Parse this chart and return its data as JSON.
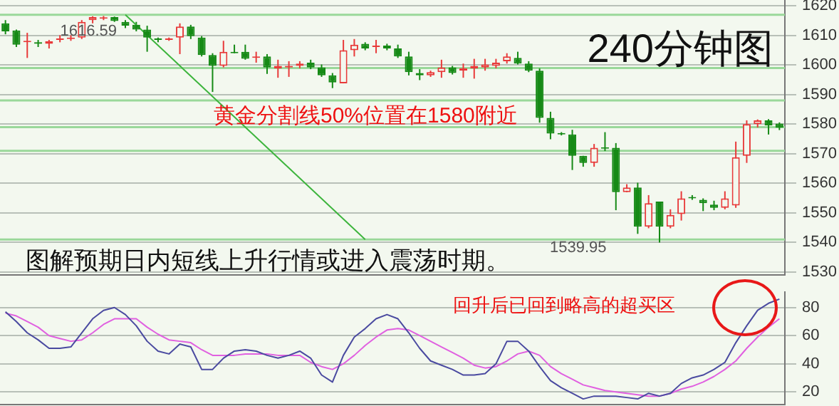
{
  "chart_data": [
    {
      "type": "candlestick",
      "title": "240分钟图",
      "categories": [
        null,
        null,
        null,
        null,
        null,
        null,
        null,
        null,
        null,
        null,
        null,
        null,
        null,
        null,
        null,
        null,
        null,
        null,
        null,
        null,
        null,
        null,
        null,
        null,
        null,
        null,
        null,
        null,
        null,
        null,
        null,
        null,
        null,
        null,
        null,
        null,
        null,
        null,
        null,
        null,
        null,
        null,
        null,
        null,
        null,
        null,
        null,
        null,
        null,
        null,
        null,
        null,
        null,
        null,
        null,
        null,
        null,
        null,
        null,
        null,
        null,
        null,
        null,
        null,
        null,
        null,
        null,
        null,
        null,
        null,
        null,
        null
      ],
      "ohlc": [
        [
          1614.1,
          1615.2,
          1610.4,
          1611.4
        ],
        [
          1611.7,
          1612.0,
          1606.1,
          1606.9
        ],
        [
          1607.7,
          1610.9,
          1602.4,
          1608.0
        ],
        [
          1607.7,
          1608.5,
          1606.1,
          1607.2
        ],
        [
          1607.2,
          1608.5,
          1605.6,
          1608.0
        ],
        [
          1608.5,
          1610.1,
          1607.7,
          1608.8
        ],
        [
          1608.8,
          1610.1,
          1608.2,
          1609.1
        ],
        [
          1609.3,
          1615.2,
          1608.8,
          1614.6
        ],
        [
          1615.2,
          1616.5,
          1614.1,
          1616.2
        ],
        [
          1615.7,
          1616.59,
          1615.2,
          1616.0
        ],
        [
          1616.2,
          1616.4,
          1614.6,
          1614.9
        ],
        [
          1614.6,
          1615.2,
          1612.5,
          1613.3
        ],
        [
          1613.6,
          1614.6,
          1611.4,
          1612.0
        ],
        [
          1612.0,
          1613.3,
          1604.5,
          1609.3
        ],
        [
          1608.8,
          1609.3,
          1607.7,
          1608.5
        ],
        [
          1608.5,
          1609.3,
          1608.2,
          1608.8
        ],
        [
          1609.3,
          1614.1,
          1603.7,
          1613.0
        ],
        [
          1613.0,
          1613.6,
          1608.8,
          1609.8
        ],
        [
          1609.3,
          1609.8,
          1602.9,
          1603.4
        ],
        [
          1603.4,
          1604.0,
          1590.9,
          1599.7
        ],
        [
          1599.7,
          1608.2,
          1599.2,
          1604.5
        ],
        [
          1604.5,
          1606.9,
          1604.0,
          1604.0
        ],
        [
          1604.5,
          1606.9,
          1601.8,
          1602.1
        ],
        [
          1602.4,
          1604.5,
          1600.8,
          1602.7
        ],
        [
          1602.9,
          1603.7,
          1597.0,
          1599.2
        ],
        [
          1598.9,
          1601.8,
          1595.7,
          1599.7
        ],
        [
          1599.2,
          1601.3,
          1596.0,
          1599.7
        ],
        [
          1599.7,
          1601.3,
          1598.9,
          1600.5
        ],
        [
          1600.8,
          1601.8,
          1598.6,
          1599.2
        ],
        [
          1599.2,
          1600.2,
          1596.0,
          1596.5
        ],
        [
          1596.5,
          1597.3,
          1592.2,
          1594.1
        ],
        [
          1593.8,
          1608.5,
          1593.8,
          1605.0
        ],
        [
          1605.0,
          1608.8,
          1602.9,
          1606.9
        ],
        [
          1607.2,
          1607.7,
          1605.0,
          1605.6
        ],
        [
          1606.1,
          1608.5,
          1604.0,
          1606.4
        ],
        [
          1606.6,
          1607.2,
          1605.0,
          1605.6
        ],
        [
          1605.6,
          1606.9,
          1602.4,
          1602.9
        ],
        [
          1602.9,
          1604.5,
          1596.5,
          1597.6
        ],
        [
          1597.3,
          1598.6,
          1594.9,
          1596.5
        ],
        [
          1596.5,
          1598.1,
          1596.0,
          1597.6
        ],
        [
          1597.6,
          1601.8,
          1595.7,
          1599.2
        ],
        [
          1599.2,
          1599.7,
          1596.8,
          1597.3
        ],
        [
          1598.1,
          1600.5,
          1595.7,
          1598.9
        ],
        [
          1598.9,
          1602.1,
          1595.4,
          1599.7
        ],
        [
          1599.2,
          1602.1,
          1598.1,
          1600.2
        ],
        [
          1599.7,
          1602.1,
          1598.9,
          1600.8
        ],
        [
          1601.3,
          1604.0,
          1600.5,
          1602.9
        ],
        [
          1602.4,
          1604.5,
          1600.2,
          1600.5
        ],
        [
          1600.5,
          1601.3,
          1597.6,
          1598.1
        ],
        [
          1598.1,
          1598.9,
          1580.5,
          1582.1
        ],
        [
          1582.1,
          1584.2,
          1574.9,
          1576.8
        ],
        [
          1576.8,
          1577.3,
          1576.2,
          1576.5
        ],
        [
          1576.5,
          1578.1,
          1564.5,
          1569.3
        ],
        [
          1569.3,
          1569.3,
          1565.6,
          1566.9
        ],
        [
          1566.9,
          1573.3,
          1565.6,
          1572.0
        ],
        [
          1572.0,
          1577.3,
          1570.9,
          1571.7
        ],
        [
          1572.0,
          1573.6,
          1550.9,
          1557.0
        ],
        [
          1557.0,
          1559.7,
          1557.0,
          1558.6
        ],
        [
          1558.6,
          1560.2,
          1542.9,
          1545.3
        ],
        [
          1545.3,
          1556.0,
          1544.8,
          1553.3
        ],
        [
          1553.8,
          1553.8,
          1539.95,
          1545.3
        ],
        [
          1545.3,
          1551.2,
          1544.8,
          1549.3
        ],
        [
          1549.6,
          1557.3,
          1547.4,
          1554.9
        ],
        [
          1555.4,
          1556.0,
          1554.4,
          1554.9
        ],
        [
          1554.4,
          1554.9,
          1550.6,
          1553.3
        ],
        [
          1552.8,
          1554.1,
          1550.9,
          1551.7
        ],
        [
          1551.7,
          1557.3,
          1551.2,
          1554.9
        ],
        [
          1552.5,
          1574.1,
          1551.7,
          1568.8
        ],
        [
          1569.3,
          1581.3,
          1566.9,
          1580.0
        ],
        [
          1580.0,
          1581.6,
          1578.9,
          1581.3
        ],
        [
          1581.3,
          1581.7,
          1576.5,
          1579.6
        ],
        [
          1580.2,
          1580.6,
          1578.0,
          1578.8
        ]
      ],
      "series": [
        {
          "type": "line",
          "color": "#3cb43c",
          "values": [
            null,
            null,
            null,
            null,
            null,
            null,
            null,
            null,
            null,
            null,
            null,
            1617,
            null,
            null,
            null,
            null,
            null,
            null,
            null,
            null,
            null,
            null,
            null,
            null,
            null,
            null,
            null,
            null,
            null,
            null,
            null,
            null,
            null,
            1541,
            null,
            null,
            null,
            null,
            null,
            null,
            null,
            null,
            null,
            null,
            null,
            null,
            null,
            null,
            null,
            null,
            null,
            null,
            null,
            null,
            null,
            null,
            null,
            null,
            null,
            null,
            null,
            null,
            null,
            null,
            null,
            null,
            null,
            null,
            null,
            null,
            null,
            null
          ]
        }
      ],
      "ylim": [
        1529,
        1622
      ],
      "yticks": [
        1530,
        1540,
        1550,
        1560,
        1570,
        1580,
        1590,
        1600,
        1610,
        1620
      ],
      "grid": "y",
      "tick_labels": "y",
      "ref_lines": [
        {
          "axis": "y",
          "value": 1617,
          "color": "#9ad89a"
        },
        {
          "axis": "y",
          "value": 1599,
          "color": "#9ad89a"
        },
        {
          "axis": "y",
          "value": 1588,
          "color": "#9ad89a"
        },
        {
          "axis": "y",
          "value": 1579,
          "color": "#9ad89a"
        },
        {
          "axis": "y",
          "value": 1571,
          "color": "#9ad89a"
        },
        {
          "axis": "y",
          "value": 1541,
          "color": "#9ad89a"
        }
      ],
      "annotations": [
        "黄金分割线50%位置在1580附近",
        "图解预期日内短线上升行情或进入震荡时期。",
        "1616.59",
        "1539.95"
      ]
    },
    {
      "type": "line",
      "categories": [
        null,
        null,
        null,
        null,
        null,
        null,
        null,
        null,
        null,
        null,
        null,
        null,
        null,
        null,
        null,
        null,
        null,
        null,
        null,
        null,
        null,
        null,
        null,
        null,
        null,
        null,
        null,
        null,
        null,
        null,
        null,
        null,
        null,
        null,
        null,
        null,
        null,
        null,
        null,
        null,
        null,
        null,
        null,
        null,
        null,
        null,
        null,
        null,
        null,
        null,
        null,
        null,
        null,
        null,
        null,
        null,
        null,
        null,
        null,
        null,
        null,
        null,
        null,
        null,
        null,
        null,
        null,
        null,
        null,
        null,
        null,
        null
      ],
      "series": [
        {
          "color": "#4a4aa0",
          "values": [
            77,
            70,
            62,
            57,
            51,
            51,
            52,
            62,
            72,
            78,
            80,
            75,
            67,
            56,
            49,
            47,
            54,
            52,
            36,
            36,
            44,
            49,
            50,
            49,
            46,
            44,
            46,
            49,
            44,
            32,
            27,
            46,
            59,
            65,
            72,
            75,
            72,
            62,
            51,
            42,
            39,
            36,
            32,
            32,
            33,
            40,
            56,
            56,
            49,
            38,
            28,
            23,
            19,
            15,
            17,
            17,
            17,
            16,
            15,
            19,
            17,
            19,
            26,
            30,
            32,
            36,
            41,
            55,
            67,
            78,
            83,
            86
          ]
        },
        {
          "color": "#e060e0",
          "values": [
            76,
            74,
            70,
            66,
            60,
            58,
            56,
            57,
            62,
            68,
            72,
            72,
            72,
            66,
            61,
            57,
            56,
            55,
            50,
            46,
            46,
            46,
            47,
            47,
            47,
            46,
            46,
            46,
            41,
            38,
            36,
            40,
            46,
            53,
            59,
            64,
            65,
            64,
            60,
            56,
            52,
            48,
            44,
            39,
            37,
            38,
            42,
            47,
            49,
            46,
            38,
            33,
            29,
            25,
            23,
            21,
            20,
            19,
            18,
            17,
            17,
            19,
            22,
            24,
            27,
            31,
            36,
            42,
            51,
            59,
            66,
            72
          ]
        }
      ],
      "ylim": [
        11,
        91
      ],
      "yticks": [
        20,
        40,
        60,
        80
      ],
      "grid": "y",
      "tick_labels": "y",
      "annotations": [
        "回升后已回到略高的超买区"
      ]
    }
  ]
}
